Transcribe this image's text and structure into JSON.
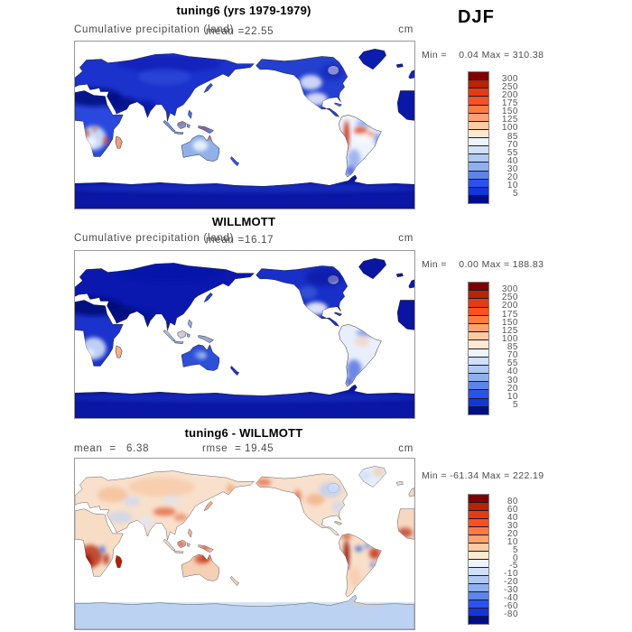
{
  "season": "DJF",
  "subtitle": "Cumulative precipitation (land)",
  "units_label": "cm",
  "colorbar_colors": [
    "#7f0000",
    "#bb2200",
    "#e63b11",
    "#fc4f22",
    "#fd7b43",
    "#fda173",
    "#fecaa2",
    "#fde8d0",
    "#eef4fb",
    "#cfe0f8",
    "#b0c8f2",
    "#8fb0ee",
    "#5c84ea",
    "#2a52ee",
    "#1236d8",
    "#000e86"
  ],
  "chart_data": {
    "type": "heatmap",
    "season": "DJF",
    "variable": "Cumulative precipitation (land)",
    "units": "cm",
    "panels": [
      {
        "name": "tuning6 (yrs 1979-1979)",
        "mean": 22.55,
        "min": 0.04,
        "max": 310.38,
        "levels": [
          5,
          10,
          20,
          30,
          40,
          55,
          70,
          85,
          100,
          125,
          150,
          175,
          200,
          250,
          300
        ]
      },
      {
        "name": "WILLMOTT",
        "mean": 16.17,
        "min": 0.0,
        "max": 188.83,
        "levels": [
          5,
          10,
          20,
          30,
          40,
          55,
          70,
          85,
          100,
          125,
          150,
          175,
          200,
          250,
          300
        ]
      },
      {
        "name": "tuning6 - WILLMOTT",
        "mean": 6.38,
        "rmse": 19.45,
        "min": -61.34,
        "max": 222.19,
        "levels": [
          -80,
          -60,
          -40,
          -30,
          -20,
          -10,
          -5,
          0,
          5,
          10,
          20,
          30,
          40,
          60,
          80
        ]
      }
    ]
  },
  "panels": [
    {
      "title": "tuning6 (yrs 1979-1979)",
      "mean_label": "mean =",
      "mean_value": "22.55",
      "minmax": "Min =    0.04 Max = 310.38",
      "cbar_labels": [
        "300",
        "250",
        "200",
        "175",
        "150",
        "125",
        "100",
        "85",
        "70",
        "55",
        "40",
        "30",
        "20",
        "10",
        "5"
      ],
      "map": {
        "coast": "#1a1a1a",
        "sea_band": null,
        "fills": {
          "default": "#1b33cc",
          "eurasia": "#1b33cc",
          "africae": "#2a48dd",
          "africaw": "#0a18a8",
          "madagascar": "#f0a080",
          "australia": "#8fb0ea",
          "newguinea": "#5c86e8",
          "sumatra": "#6c94e8",
          "borneo": "#7fa4ec",
          "java": "#7fa4ec",
          "sulawesi": "#7fa4ec",
          "philippines": "#4a6ae0",
          "japan": "#3355dd",
          "nz": "#2a52ee",
          "namerica": "#2440d0",
          "hudson": "#ffffff",
          "greenland": "#0c1cae",
          "iceland": "#0c1cae",
          "uk": "#1228b8",
          "cuba": "#4a6ae0",
          "samerica": "#eef3fd",
          "antarctica": "#0a16a4"
        },
        "overlays": [
          [
            20,
            60,
            30,
            10,
            "#000d80",
            0.85
          ],
          [
            52,
            68,
            16,
            8,
            "#000d80",
            0.8
          ],
          [
            75,
            71,
            11,
            8,
            "#0515a0",
            0.75
          ],
          [
            100,
            24,
            55,
            9,
            "#0818b0",
            0.55
          ],
          [
            95,
            38,
            28,
            9,
            "#3b58e0",
            0.45
          ],
          [
            20,
            104,
            13,
            13,
            "#cfe0f8",
            0.95
          ],
          [
            17,
            108,
            6,
            6,
            "#ffffff",
            0.7
          ],
          [
            12,
            99,
            2.5,
            4,
            "#cc3311",
            0.9
          ],
          [
            21,
            94,
            2,
            2.5,
            "#cc3311",
            0.8
          ],
          [
            33,
            107,
            2.5,
            5,
            "#dd4422",
            0.85
          ],
          [
            113,
            89,
            2.5,
            2,
            "#cc3311",
            0.9
          ],
          [
            138,
            94,
            4,
            1.8,
            "#cc3311",
            0.85
          ],
          [
            152,
            95,
            2,
            1.5,
            "#cc3311",
            0.8
          ],
          [
            133,
            112,
            8,
            6,
            "#ffffff",
            0.8
          ],
          [
            143,
            103,
            3,
            2,
            "#cc3311",
            0.9
          ],
          [
            250,
            44,
            12,
            8,
            "#e8f0fc",
            0.85
          ],
          [
            273,
            33,
            13,
            9,
            "#0a1cb0",
            0.5
          ],
          [
            256,
            62,
            12,
            7,
            "#ffffff",
            0.8
          ],
          [
            288,
            101,
            2.6,
            16,
            "#c22000",
            0.95
          ],
          [
            303,
            96,
            7,
            4.5,
            "#dd4422",
            0.8
          ],
          [
            313,
            100,
            4,
            3,
            "#ee6633",
            0.75
          ],
          [
            306,
            104,
            10,
            6,
            "#ffffff",
            0.5
          ],
          [
            311,
            88,
            13,
            3.5,
            "#5c84ea",
            0.65
          ],
          [
            321,
            105,
            3.5,
            7,
            "#4a6ae0",
            0.6
          ],
          [
            296,
            127,
            7,
            11,
            "#8fa8ec",
            0.8
          ],
          [
            292,
            140,
            5,
            6,
            "#2a48d8",
            0.75
          ],
          [
            180,
            158,
            190,
            5,
            "#2a48dd",
            0.4
          ]
        ]
      }
    },
    {
      "title": "WILLMOTT",
      "mean_label": "mean =",
      "mean_value": "16.17",
      "minmax": "Min =    0.00 Max = 188.83",
      "cbar_labels": [
        "300",
        "250",
        "200",
        "175",
        "150",
        "125",
        "100",
        "85",
        "70",
        "55",
        "40",
        "30",
        "20",
        "10",
        "5"
      ],
      "map": {
        "coast": "#1a1a1a",
        "sea_band": null,
        "fills": {
          "default": "#0a18b0",
          "eurasia": "#0a18b0",
          "africae": "#1b33cc",
          "africaw": "#0a14a0",
          "madagascar": "#f4b08c",
          "australia": "#2e4fd8",
          "newguinea": "#8aa8ec",
          "sumatra": "#9db8f0",
          "borneo": "#b8ccf4",
          "java": "#8fb0ee",
          "sulawesi": "#9db8f0",
          "philippines": "#8fb0ee",
          "japan": "#2440d0",
          "nz": "#1b33cc",
          "namerica": "#1830c8",
          "hudson": "#ffffff",
          "greenland": "#0a16a0",
          "iceland": "#0a16a0",
          "uk": "#0c1cb0",
          "cuba": "#2440d0",
          "samerica": "#e8effc",
          "antarctica": "#0a16a4"
        },
        "overlays": [
          [
            20,
            60,
            30,
            10,
            "#000c78",
            0.9
          ],
          [
            52,
            68,
            16,
            8,
            "#000c78",
            0.85
          ],
          [
            75,
            71,
            11,
            8,
            "#031296",
            0.8
          ],
          [
            100,
            24,
            55,
            9,
            "#0614a6",
            0.55
          ],
          [
            20,
            105,
            13,
            12,
            "#c8d9f6",
            0.95
          ],
          [
            16,
            110,
            5,
            5,
            "#eef4fd",
            0.75
          ],
          [
            113,
            89,
            3.5,
            2.5,
            "#f8c8a4",
            0.95
          ],
          [
            98,
            87,
            2.2,
            2,
            "#f8c8a4",
            0.85
          ],
          [
            139,
            95,
            3.5,
            1.6,
            "#f4a87c",
            0.9
          ],
          [
            133,
            112,
            6,
            4.5,
            "#8fb0ea",
            0.75
          ],
          [
            136,
            113,
            3,
            2.5,
            "#e8eefc",
            0.6
          ],
          [
            265,
            28,
            20,
            10,
            "#0a16a0",
            0.65
          ],
          [
            247,
            45,
            10,
            7,
            "#4a6ae0",
            0.55
          ],
          [
            256,
            62,
            12,
            7,
            "#ffffff",
            0.85
          ],
          [
            305,
            98,
            8,
            5,
            "#f6b890",
            0.9
          ],
          [
            308,
            100,
            13,
            8,
            "#eef3fd",
            0.5
          ],
          [
            311,
            88,
            13,
            3.5,
            "#4a6ae0",
            0.6
          ],
          [
            296,
            128,
            8,
            11,
            "#4466dd",
            0.75
          ],
          [
            291,
            141,
            4,
            5,
            "#1b33c8",
            0.75
          ],
          [
            180,
            158,
            190,
            5,
            "#2a48dd",
            0.35
          ]
        ]
      }
    },
    {
      "title": "tuning6 - WILLMOTT",
      "mean_label": "mean  =",
      "mean_value": "6.38",
      "rmse_label": "rmse  =",
      "rmse_value": "19.45",
      "minmax": "Min = -61.34 Max = 222.19",
      "cbar_labels": [
        "80",
        "60",
        "40",
        "30",
        "20",
        "10",
        "5",
        "0",
        "-5",
        "-10",
        "-20",
        "-30",
        "-40",
        "-60",
        "-80"
      ],
      "map": {
        "coast": "#555555",
        "sea_band": "#d4e2f6",
        "fills": {
          "default": "#f8e0cc",
          "eurasia": "#f8e0cc",
          "africae": "#f8ddc6",
          "africaw": "#f6d8c0",
          "madagascar": "#b02000",
          "australia": "#f6d0b4",
          "newguinea": "#f0c0a0",
          "sumatra": "#f4d4bc",
          "borneo": "#f0c8ac",
          "java": "#f4d4bc",
          "sulawesi": "#f0c8ac",
          "philippines": "#e8b898",
          "japan": "#f0b088",
          "nz": "#f0cdb4",
          "namerica": "#f8e0cc",
          "hudson": "#ffffff",
          "greenland": "#e6eefa",
          "iceland": "#e8e0d4",
          "uk": "#eed8c4",
          "cuba": "#f0c8ac",
          "samerica": "#f8dfca",
          "antarctica": "#bcd2f2"
        },
        "overlays": [
          [
            16,
            103,
            13,
            12,
            "#b52a10",
            0.8
          ],
          [
            12,
            109,
            6,
            8,
            "#8f1000",
            0.8
          ],
          [
            33,
            106,
            3,
            6,
            "#a81e08",
            0.8
          ],
          [
            29,
            96,
            3,
            4,
            "#4a74e8",
            0.9
          ],
          [
            48,
            62,
            13,
            6,
            "#c2d4f2",
            0.7
          ],
          [
            75,
            67,
            8,
            6,
            "#dce8f8",
            0.7
          ],
          [
            40,
            38,
            16,
            8,
            "#f4aa78",
            0.5
          ],
          [
            92,
            30,
            35,
            10,
            "#f6ba8c",
            0.45
          ],
          [
            60,
            45,
            9,
            5,
            "#c8d8f4",
            0.7
          ],
          [
            103,
            44,
            10,
            5,
            "#d8e4f8",
            0.6
          ],
          [
            95,
            56,
            12,
            4.5,
            "#e05028",
            0.65
          ],
          [
            112,
            62,
            7,
            4,
            "#e86038",
            0.55
          ],
          [
            112,
            90,
            3,
            2,
            "#c81800",
            0.95
          ],
          [
            117,
            92,
            2,
            1.5,
            "#3a66e0",
            0.85
          ],
          [
            138,
            94,
            4,
            2,
            "#cc2808",
            0.9
          ],
          [
            135,
            106,
            8,
            5,
            "#c83010",
            0.7
          ],
          [
            139,
            104,
            4,
            3,
            "#a01600",
            0.75
          ],
          [
            200,
            25,
            8,
            4,
            "#e86038",
            0.7
          ],
          [
            165,
            32,
            4,
            5,
            "#f09860",
            0.7
          ],
          [
            236,
            40,
            4,
            7,
            "#d84820",
            0.6
          ],
          [
            255,
            43,
            10,
            6,
            "#f0a070",
            0.6
          ],
          [
            271,
            33,
            12,
            8,
            "#b8cdf2",
            0.75
          ],
          [
            279,
            51,
            6,
            6,
            "#c8d8f4",
            0.7
          ],
          [
            288,
            102,
            3,
            16,
            "#8f1000",
            0.9
          ],
          [
            318,
            100,
            6,
            6,
            "#c02808",
            0.8
          ],
          [
            288,
            82,
            5,
            3,
            "#c83010",
            0.7
          ],
          [
            301,
            95,
            4,
            3,
            "#3a66e0",
            0.85
          ],
          [
            310,
            92,
            3,
            3,
            "#5580e8",
            0.75
          ],
          [
            316,
            112,
            3,
            3,
            "#4a74e8",
            0.7
          ],
          [
            297,
            125,
            6,
            10,
            "#f6c8a8",
            0.7
          ],
          [
            350,
            78,
            8,
            5,
            "#b82808",
            0.7
          ],
          [
            322,
            14,
            6,
            5,
            "#f2c4a0",
            0.6
          ],
          [
            308,
            18,
            5,
            5,
            "#c8d8f4",
            0.6
          ],
          [
            310,
            152,
            16,
            3,
            "#f2c6a0",
            0.65
          ]
        ]
      }
    }
  ]
}
